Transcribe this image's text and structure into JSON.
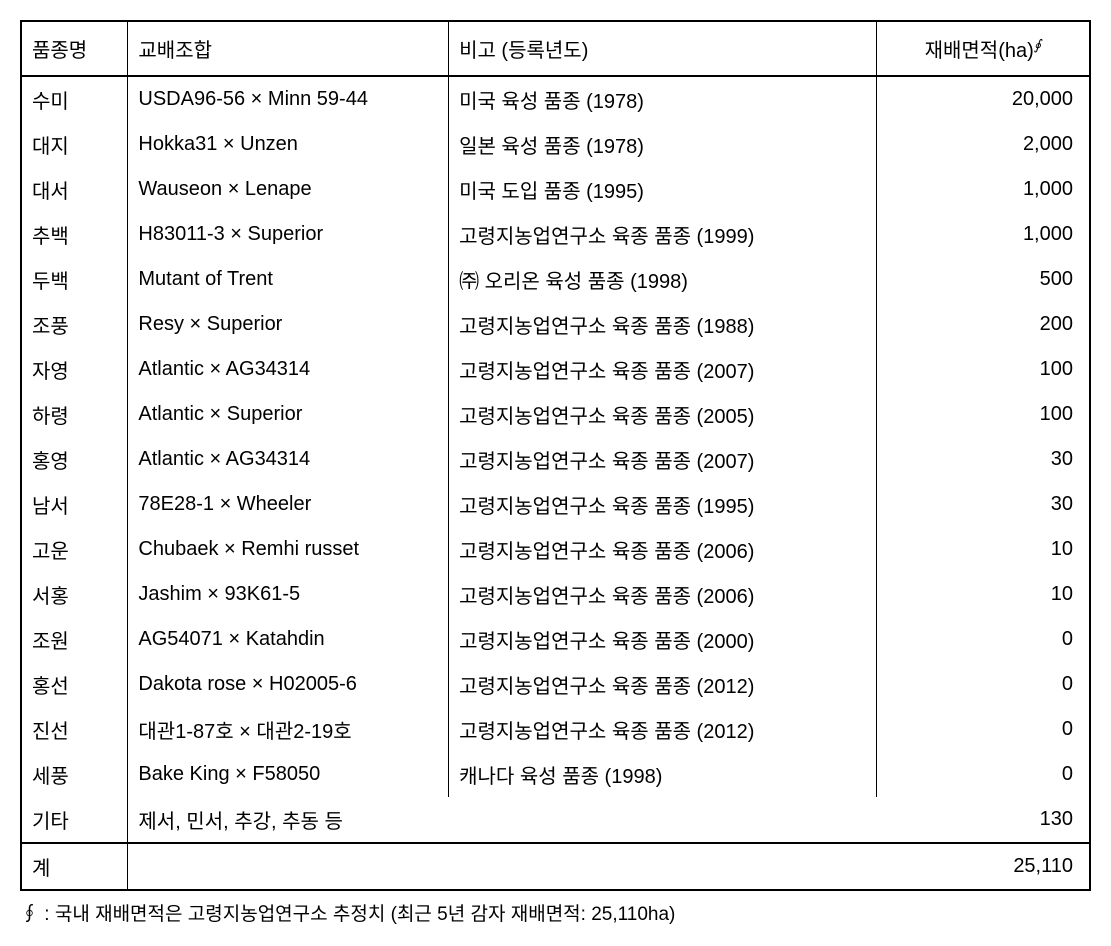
{
  "table": {
    "headers": {
      "col1": "품종명",
      "col2": "교배조합",
      "col3": "비고 (등록년도)",
      "col4": "재배면적(ha)",
      "col4_sup": "∮"
    },
    "rows": [
      {
        "name": "수미",
        "cross": "USDA96-56 × Minn 59-44",
        "note": "미국 육성 품종 (1978)",
        "area": "20,000"
      },
      {
        "name": "대지",
        "cross": "Hokka31 × Unzen",
        "note": "일본 육성 품종 (1978)",
        "area": "2,000"
      },
      {
        "name": "대서",
        "cross": "Wauseon × Lenape",
        "note": "미국 도입 품종 (1995)",
        "area": "1,000"
      },
      {
        "name": "추백",
        "cross": "H83011-3 × Superior",
        "note": "고령지농업연구소 육종 품종 (1999)",
        "area": "1,000"
      },
      {
        "name": "두백",
        "cross": "Mutant of Trent",
        "note": "㈜ 오리온 육성 품종 (1998)",
        "area": "500"
      },
      {
        "name": "조풍",
        "cross": "Resy × Superior",
        "note": "고령지농업연구소 육종 품종 (1988)",
        "area": "200"
      },
      {
        "name": "자영",
        "cross": "Atlantic × AG34314",
        "note": "고령지농업연구소 육종 품종 (2007)",
        "area": "100"
      },
      {
        "name": "하령",
        "cross": "Atlantic × Superior",
        "note": "고령지농업연구소 육종 품종 (2005)",
        "area": "100"
      },
      {
        "name": "홍영",
        "cross": "Atlantic × AG34314",
        "note": "고령지농업연구소 육종 품종 (2007)",
        "area": "30"
      },
      {
        "name": "남서",
        "cross": "78E28-1 × Wheeler",
        "note": "고령지농업연구소 육종 품종 (1995)",
        "area": "30"
      },
      {
        "name": "고운",
        "cross": "Chubaek × Remhi russet",
        "note": "고령지농업연구소 육종 품종 (2006)",
        "area": "10"
      },
      {
        "name": "서홍",
        "cross": "Jashim × 93K61-5",
        "note": "고령지농업연구소 육종 품종 (2006)",
        "area": "10"
      },
      {
        "name": "조원",
        "cross": "AG54071 × Katahdin",
        "note": "고령지농업연구소 육종 품종 (2000)",
        "area": "0"
      },
      {
        "name": "홍선",
        "cross": "Dakota rose × H02005-6",
        "note": "고령지농업연구소 육종 품종 (2012)",
        "area": "0"
      },
      {
        "name": "진선",
        "cross": "대관1-87호 × 대관2-19호",
        "note": "고령지농업연구소 육종 품종 (2012)",
        "area": "0"
      },
      {
        "name": "세풍",
        "cross": "Bake King × F58050",
        "note": "캐나다 육성 품종 (1998)",
        "area": "0"
      },
      {
        "name": "기타",
        "cross": "제서, 민서, 추강, 추동 등",
        "note": "",
        "area": "130"
      }
    ],
    "footer": {
      "label": "계",
      "total": "25,110"
    }
  },
  "footnote": {
    "symbol": "∮",
    "text": ": 국내 재배면적은 고령지농업연구소 추정치 (최근 5년 감자 재배면적: 25,110ha)"
  },
  "styling": {
    "border_color": "#000000",
    "background_color": "#ffffff",
    "font_size_body": 20,
    "font_size_footnote": 19,
    "cell_padding_v": 8,
    "cell_padding_h": 10,
    "header_padding_v": 12,
    "column_widths": [
      "10%",
      "30%",
      "40%",
      "20%"
    ],
    "outer_border_width": 2,
    "inner_border_width": 1
  }
}
